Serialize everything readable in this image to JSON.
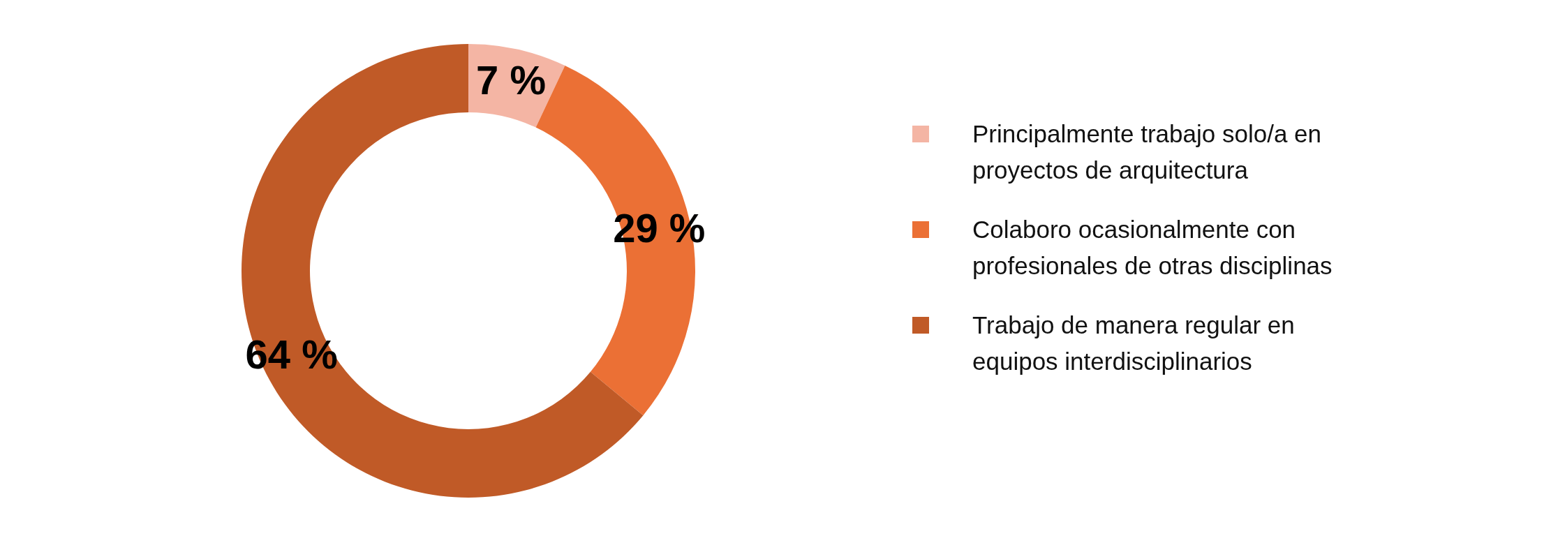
{
  "chart_data": {
    "type": "donut",
    "categories": [
      "Principalmente trabajo solo/a en proyectos de arquitectura",
      "Colaboro ocasionalmente con profesionales de otras disciplinas",
      "Trabajo de manera regular en equipos interdisciplinarios"
    ],
    "values": [
      7,
      29,
      64
    ],
    "colors": [
      "#f4b5a4",
      "#eb7035",
      "#c05a27"
    ],
    "value_labels": [
      "7 %",
      "29 %",
      "64 %"
    ],
    "legend": "right"
  }
}
